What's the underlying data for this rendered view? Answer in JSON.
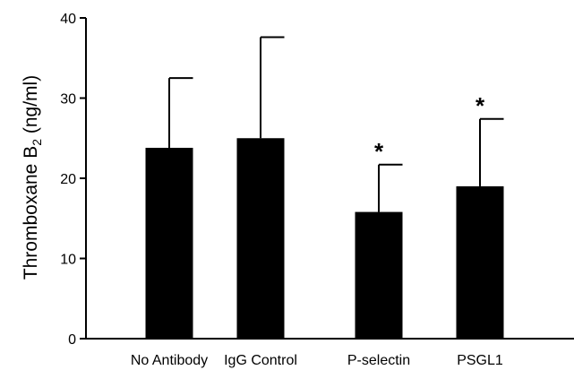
{
  "chart_data": {
    "type": "bar",
    "categories": [
      "No Antibody",
      "IgG Control",
      "P-selectin",
      "PSGL1"
    ],
    "values": [
      23.8,
      25.0,
      15.8,
      19.0
    ],
    "error_upper": [
      32.5,
      37.6,
      21.7,
      27.4
    ],
    "markers": [
      "",
      "",
      "*",
      "*"
    ],
    "ylabel": {
      "text": "Thromboxane B",
      "subscript": "2",
      "unit": " (ng/ml)"
    },
    "ylim": [
      0,
      40
    ],
    "yticks": [
      "0",
      "10",
      "20",
      "30",
      "40"
    ],
    "grid": false,
    "bar_color": "#000000"
  }
}
